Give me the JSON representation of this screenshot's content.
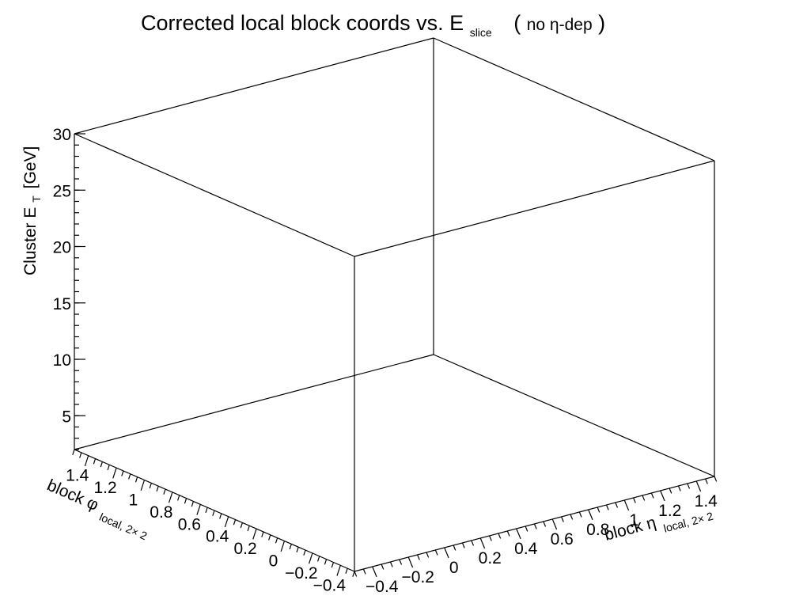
{
  "chart_data": {
    "type": "scatter",
    "title": {
      "main": "Corrected local block coords vs. E",
      "main_sub": "slice",
      "note_open": "(",
      "note": "no η-dep",
      "note_close": ")"
    },
    "xlabel": {
      "main": "block η",
      "sub": "local, 2× 2"
    },
    "ylabel": {
      "main": "block φ",
      "sub": "local, 2× 2"
    },
    "zlabel": {
      "main": "Cluster E",
      "sub": "T",
      "unit": "[GeV]"
    },
    "xlim": [
      -0.5,
      1.5
    ],
    "ylim": [
      -0.5,
      1.5
    ],
    "zlim": [
      2,
      30
    ],
    "x_ticks": [
      -0.4,
      -0.2,
      0,
      0.2,
      0.4,
      0.6,
      0.8,
      1,
      1.2,
      1.4
    ],
    "y_ticks": [
      -0.4,
      -0.2,
      0,
      0.2,
      0.4,
      0.6,
      0.8,
      1,
      1.2,
      1.4
    ],
    "z_ticks": [
      5,
      10,
      15,
      20,
      25,
      30
    ],
    "x_tick_labels": [
      "−0.4",
      "−0.2",
      "0",
      "0.2",
      "0.4",
      "0.6",
      "0.8",
      "1",
      "1.2",
      "1.4"
    ],
    "y_tick_labels": [
      "−0.4",
      "−0.2",
      "0",
      "0.2",
      "0.4",
      "0.6",
      "0.8",
      "1",
      "1.2",
      "1.4"
    ],
    "z_tick_labels": [
      "5",
      "10",
      "15",
      "20",
      "25",
      "30"
    ],
    "points": [],
    "grid": false,
    "legend": "none"
  }
}
